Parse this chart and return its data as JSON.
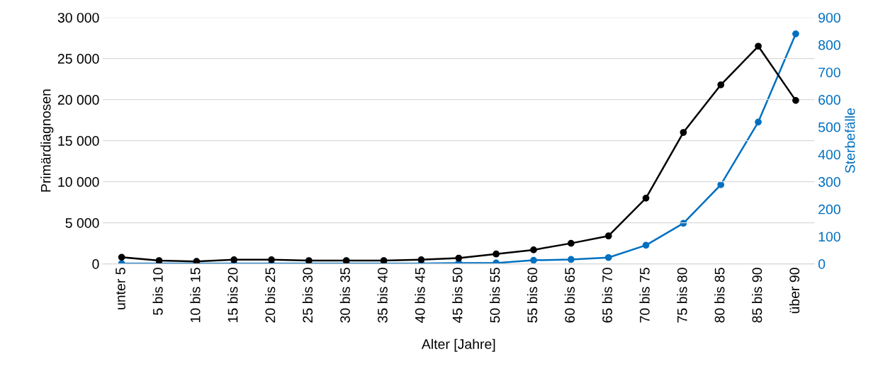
{
  "chart_data": {
    "type": "line",
    "xlabel": "Alter [Jahre]",
    "ylabel": "Primärdiagnosen",
    "y2label": "Sterbefälle",
    "categories": [
      "unter 5",
      "5 bis 10",
      "10 bis 15",
      "15 bis 20",
      "20 bis 25",
      "25 bis 30",
      "30 bis 35",
      "35 bis 40",
      "40 bis 45",
      "45 bis 50",
      "50 bis 55",
      "55 bis 60",
      "60 bis 65",
      "65 bis 70",
      "70 bis 75",
      "75 bis 80",
      "80 bis 85",
      "85 bis 90",
      "über 90"
    ],
    "series": [
      {
        "color": "#000000",
        "values": [
          800,
          400,
          300,
          500,
          500,
          400,
          400,
          400,
          500,
          700,
          1200,
          1700,
          2500,
          3400,
          8000,
          16000,
          21800,
          26500,
          19900
        ]
      },
      {
        "color": "#0070c0",
        "axis": "y2",
        "values": [
          1,
          1,
          1,
          1,
          1,
          1,
          1,
          1,
          1,
          3,
          3,
          13,
          16,
          23,
          68,
          148,
          289,
          518,
          840
        ]
      }
    ],
    "ylim": [
      0,
      30000
    ],
    "yticks": [
      0,
      {
        "value": 5000,
        "label": "5 000"
      },
      {
        "value": 10000,
        "label": "10 000"
      },
      {
        "value": 15000,
        "label": "15 000"
      },
      {
        "value": 20000,
        "label": "20 000"
      },
      {
        "value": 25000,
        "label": "25 000"
      },
      {
        "value": 30000,
        "label": "30 000"
      }
    ],
    "y2lim": [
      0,
      900
    ],
    "y2ticks": [
      0,
      100,
      200,
      300,
      400,
      500,
      600,
      700,
      800,
      900
    ],
    "grid": "y",
    "marker": "circle",
    "line_style": "solid",
    "legend": false
  }
}
